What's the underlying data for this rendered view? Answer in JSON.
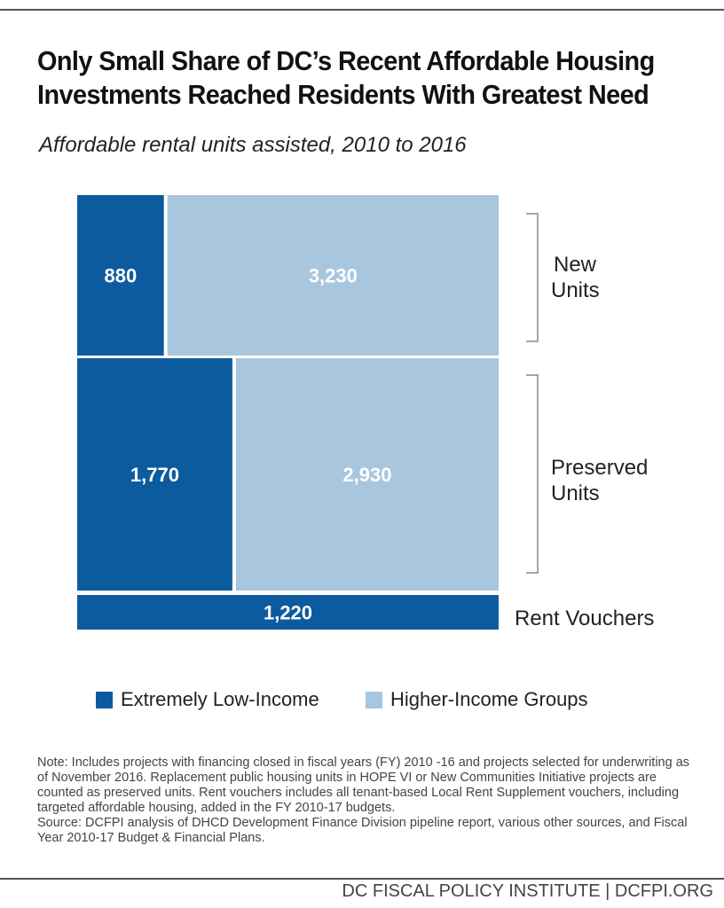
{
  "title": "Only Small Share of DC’s Recent Affordable Housing Investments Reached Residents With Greatest Need",
  "subtitle": "Affordable rental units assisted, 2010 to 2016",
  "chart_data": {
    "type": "treemap",
    "colors": {
      "Extremely Low-Income": "#0d5b9f",
      "Higher-Income Groups": "#a9c6df"
    },
    "rows": [
      {
        "label": "New Units",
        "cells": [
          {
            "series": "Extremely Low-Income",
            "value": 880,
            "label": "880"
          },
          {
            "series": "Higher-Income Groups",
            "value": 3230,
            "label": "3,230"
          }
        ]
      },
      {
        "label": "Preserved Units",
        "cells": [
          {
            "series": "Extremely Low-Income",
            "value": 1770,
            "label": "1,770"
          },
          {
            "series": "Higher-Income Groups",
            "value": 2930,
            "label": "2,930"
          }
        ]
      },
      {
        "label": "Rent Vouchers",
        "cells": [
          {
            "series": "Extremely Low-Income",
            "value": 1220,
            "label": "1,220"
          }
        ]
      }
    ],
    "legend": [
      "Extremely Low-Income",
      "Higher-Income Groups"
    ],
    "legend_position": "bottom"
  },
  "note": "Note: Includes projects with financing closed in fiscal years (FY) 2010 -16 and projects selected for underwriting as of November 2016. Replacement public housing units in HOPE VI or New Communities Initiative projects are counted as preserved units.  Rent vouchers includes all tenant-based Local Rent Supplement vouchers, including targeted affordable housing, added in the FY 2010-17 budgets.",
  "source": "Source: DCFPI analysis of DHCD Development Finance Division pipeline report, various other sources, and Fiscal Year 2010-17 Budget & Financial Plans.",
  "footer": "DC FISCAL POLICY INSTITUTE | DCFPI.ORG"
}
